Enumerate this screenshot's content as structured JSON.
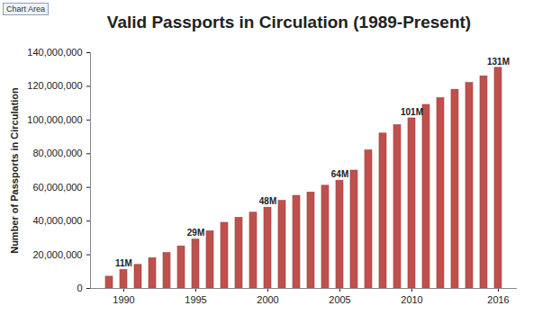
{
  "chart_data": {
    "type": "bar",
    "title": "Valid Passports in Circulation (1989-Present)",
    "annotations": [
      "Chart Area"
    ],
    "y_label": "Number of Passports in Circulation",
    "categories": [
      null,
      "1990",
      null,
      null,
      null,
      null,
      "1995",
      null,
      null,
      null,
      null,
      "2000",
      null,
      null,
      null,
      null,
      "2005",
      null,
      null,
      null,
      null,
      "2010",
      null,
      null,
      null,
      null,
      null,
      "2016"
    ],
    "values": [
      7000000,
      11000000,
      14000000,
      18000000,
      21000000,
      25000000,
      29000000,
      34000000,
      39000000,
      42000000,
      45000000,
      48000000,
      52000000,
      55000000,
      57000000,
      61000000,
      64000000,
      70000000,
      82000000,
      92000000,
      97000000,
      101000000,
      109000000,
      113000000,
      118000000,
      122000000,
      126000000,
      131000000
    ],
    "value_labels": [
      null,
      "11M",
      null,
      null,
      null,
      null,
      "29M",
      null,
      null,
      null,
      null,
      "48M",
      null,
      null,
      null,
      null,
      "64M",
      null,
      null,
      null,
      null,
      "101M",
      null,
      null,
      null,
      null,
      null,
      "131M"
    ],
    "color": "#c0504d",
    "ylim": [
      0,
      140000000
    ],
    "yticks": [
      0,
      {
        "value": 20000000,
        "label": "20,000,000"
      },
      {
        "value": 40000000,
        "label": "40,000,000"
      },
      {
        "value": 60000000,
        "label": "60,000,000"
      },
      {
        "value": 80000000,
        "label": "80,000,000"
      },
      {
        "value": 100000000,
        "label": "100,000,000"
      },
      {
        "value": 120000000,
        "label": "120,000,000"
      },
      {
        "value": 140000000,
        "label": "140,000,000"
      }
    ],
    "grid": false,
    "data_labels": true
  }
}
